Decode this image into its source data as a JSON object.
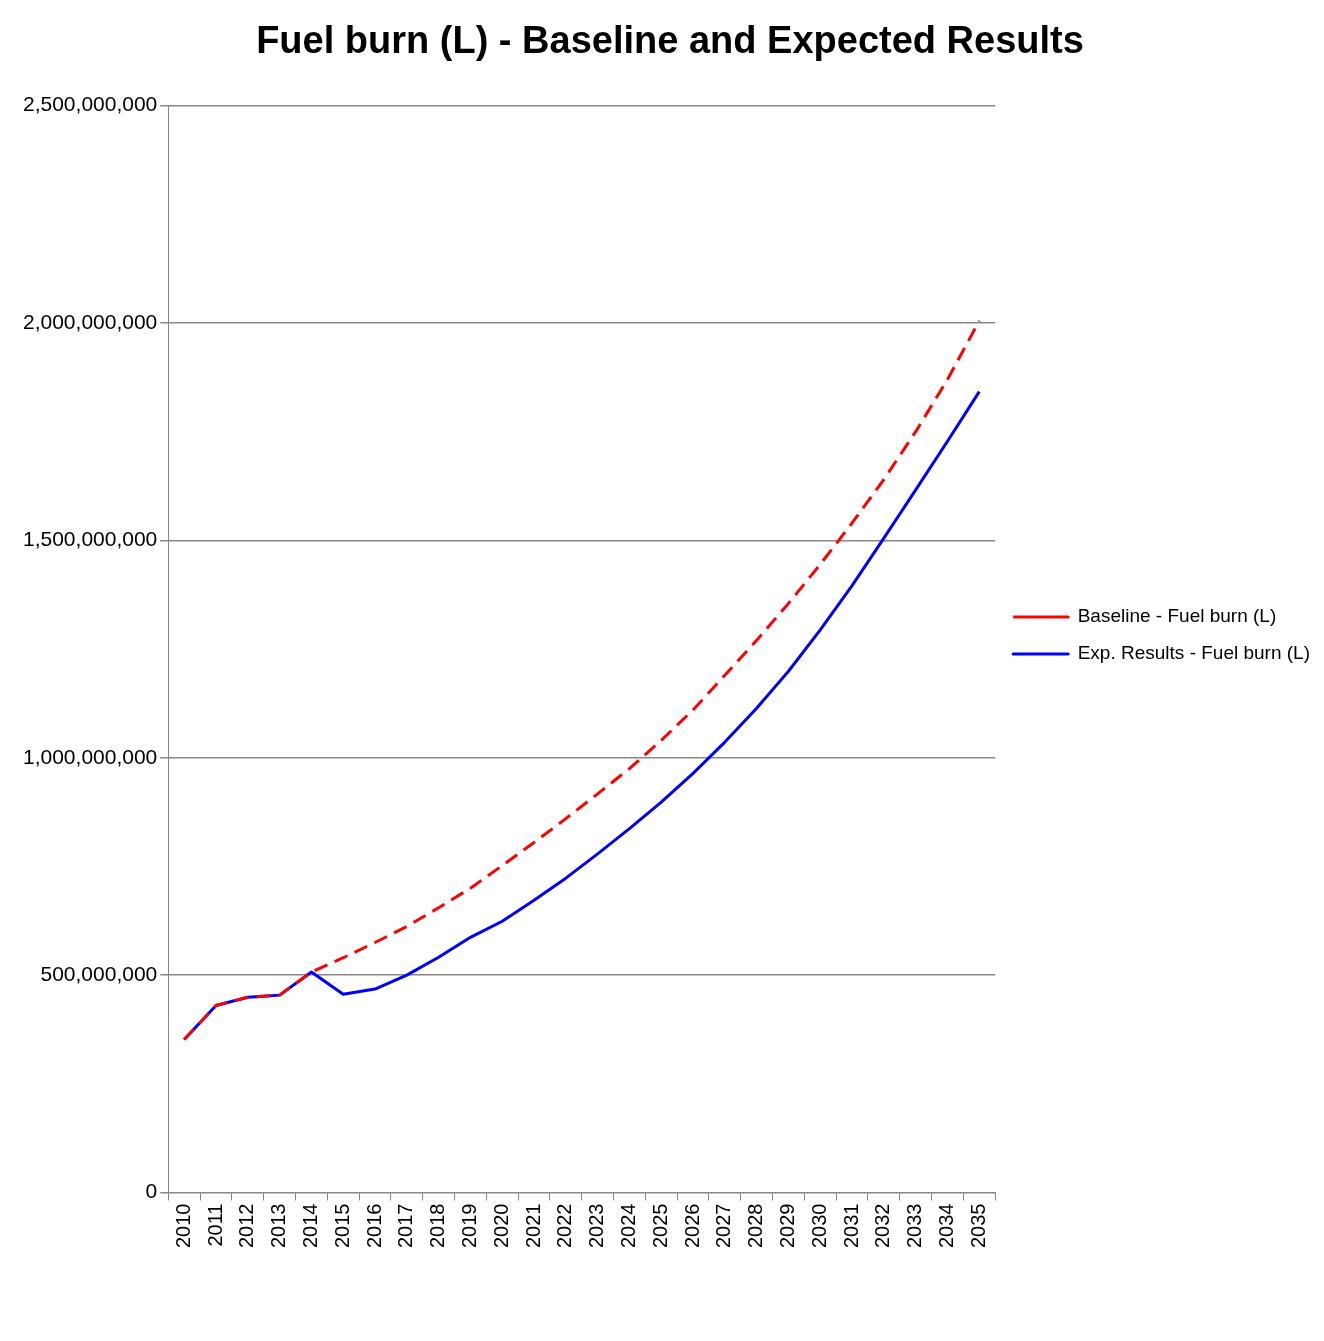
{
  "chart_data": {
    "type": "line",
    "title": "Fuel burn (L) - Baseline and Expected Results",
    "categories": [
      "2010",
      "2011",
      "2012",
      "2013",
      "2014",
      "2015",
      "2016",
      "2017",
      "2018",
      "2019",
      "2020",
      "2021",
      "2022",
      "2023",
      "2024",
      "2025",
      "2026",
      "2027",
      "2028",
      "2029",
      "2030",
      "2031",
      "2032",
      "2033",
      "2034",
      "2035"
    ],
    "series": [
      {
        "name": "Baseline - Fuel burn (L)",
        "color": "#ff0000",
        "line_style": "dashed",
        "values": [
          352000000,
          430000000,
          449000000,
          454000000,
          507000000,
          540000000,
          575000000,
          612000000,
          655000000,
          700000000,
          752000000,
          805000000,
          860000000,
          917000000,
          975000000,
          1040000000,
          1110000000,
          1190000000,
          1270000000,
          1355000000,
          1445000000,
          1540000000,
          1640000000,
          1750000000,
          1870000000,
          2005000000
        ]
      },
      {
        "name": "Exp. Results - Fuel burn (L)",
        "color": "#0000ff",
        "line_style": "solid",
        "values": [
          352000000,
          430000000,
          449000000,
          454000000,
          507000000,
          456000000,
          468000000,
          500000000,
          541000000,
          587000000,
          624000000,
          672000000,
          723000000,
          779000000,
          837000000,
          898000000,
          964000000,
          1036000000,
          1114000000,
          1199000000,
          1294000000,
          1396000000,
          1505000000,
          1616000000,
          1728000000,
          1842000000
        ]
      }
    ],
    "ylim": [
      0,
      2500000000
    ],
    "yticks": [
      0,
      {
        "value": 500000000,
        "label": "500,000,000"
      },
      {
        "value": 1000000000,
        "label": "1,000,000,000"
      },
      {
        "value": 1500000000,
        "label": "1,500,000,000"
      },
      {
        "value": 2000000000,
        "label": "2,000,000,000"
      },
      {
        "value": 2500000000,
        "label": "2,500,000,000"
      }
    ],
    "grid": "y",
    "legend": "right",
    "marker": "none"
  }
}
